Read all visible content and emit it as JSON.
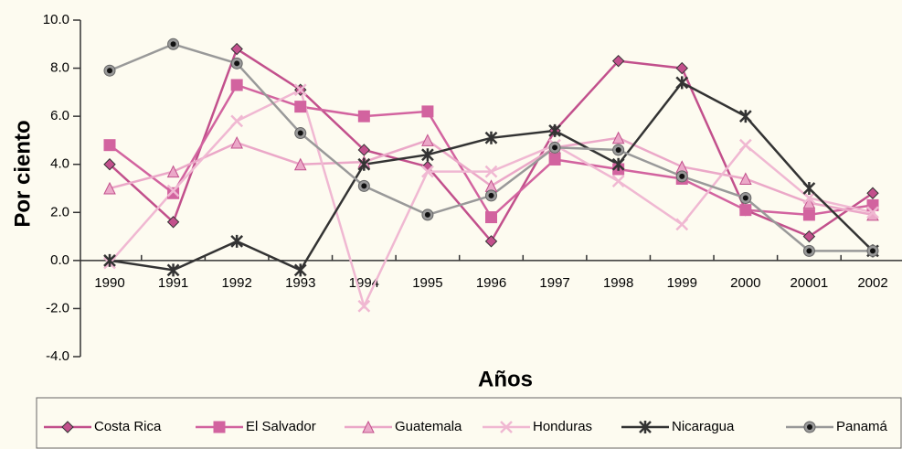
{
  "chart_data": {
    "type": "line",
    "ylabel": "Por ciento",
    "xlabel": "Años",
    "categories": [
      "1990",
      "1991",
      "1992",
      "1993",
      "1994",
      "1995",
      "1996",
      "1997",
      "1998",
      "1999",
      "2000",
      "20001",
      "2002"
    ],
    "ylim": [
      -4,
      10
    ],
    "yticks": [
      {
        "value": -4,
        "label": "-4.0"
      },
      {
        "value": -2,
        "label": "-2.0"
      },
      {
        "value": 0,
        "label": "0.0"
      },
      {
        "value": 2,
        "label": "2.0"
      },
      {
        "value": 4,
        "label": "4.0"
      },
      {
        "value": 6,
        "label": "6.0"
      },
      {
        "value": 8,
        "label": "8.0"
      },
      {
        "value": 10,
        "label": "10.0"
      }
    ],
    "series": [
      {
        "name": "Costa Rica",
        "color": "#c2508c",
        "marker": "diamond",
        "values": [
          4.0,
          1.6,
          8.8,
          7.1,
          4.6,
          3.9,
          0.8,
          5.4,
          8.3,
          8.0,
          2.1,
          1.0,
          2.8
        ]
      },
      {
        "name": "El Salvador",
        "color": "#d2639f",
        "marker": "square",
        "values": [
          4.8,
          2.8,
          7.3,
          6.4,
          6.0,
          6.2,
          1.8,
          4.2,
          3.8,
          3.4,
          2.1,
          1.9,
          2.3
        ]
      },
      {
        "name": "Guatemala",
        "color": "#eba8c8",
        "marker": "triangle",
        "values": [
          3.0,
          3.7,
          4.9,
          4.0,
          4.1,
          5.0,
          3.1,
          4.7,
          5.1,
          3.9,
          3.4,
          2.4,
          1.9
        ]
      },
      {
        "name": "Honduras",
        "color": "#f0b8d2",
        "marker": "x",
        "values": [
          -0.1,
          2.9,
          5.8,
          7.1,
          -1.9,
          3.7,
          3.7,
          4.8,
          3.3,
          1.5,
          4.8,
          2.6,
          2.0
        ]
      },
      {
        "name": "Nicaragua",
        "color": "#333333",
        "marker": "asterisk",
        "values": [
          0.0,
          -0.4,
          0.8,
          -0.4,
          4.0,
          4.4,
          5.1,
          5.4,
          4.0,
          7.4,
          6.0,
          3.0,
          0.4
        ]
      },
      {
        "name": "Panamá",
        "color": "#999999",
        "marker": "circle",
        "values": [
          7.9,
          9.0,
          8.2,
          5.3,
          3.1,
          1.9,
          2.7,
          4.7,
          4.6,
          3.5,
          2.6,
          0.4,
          0.4
        ]
      }
    ]
  }
}
